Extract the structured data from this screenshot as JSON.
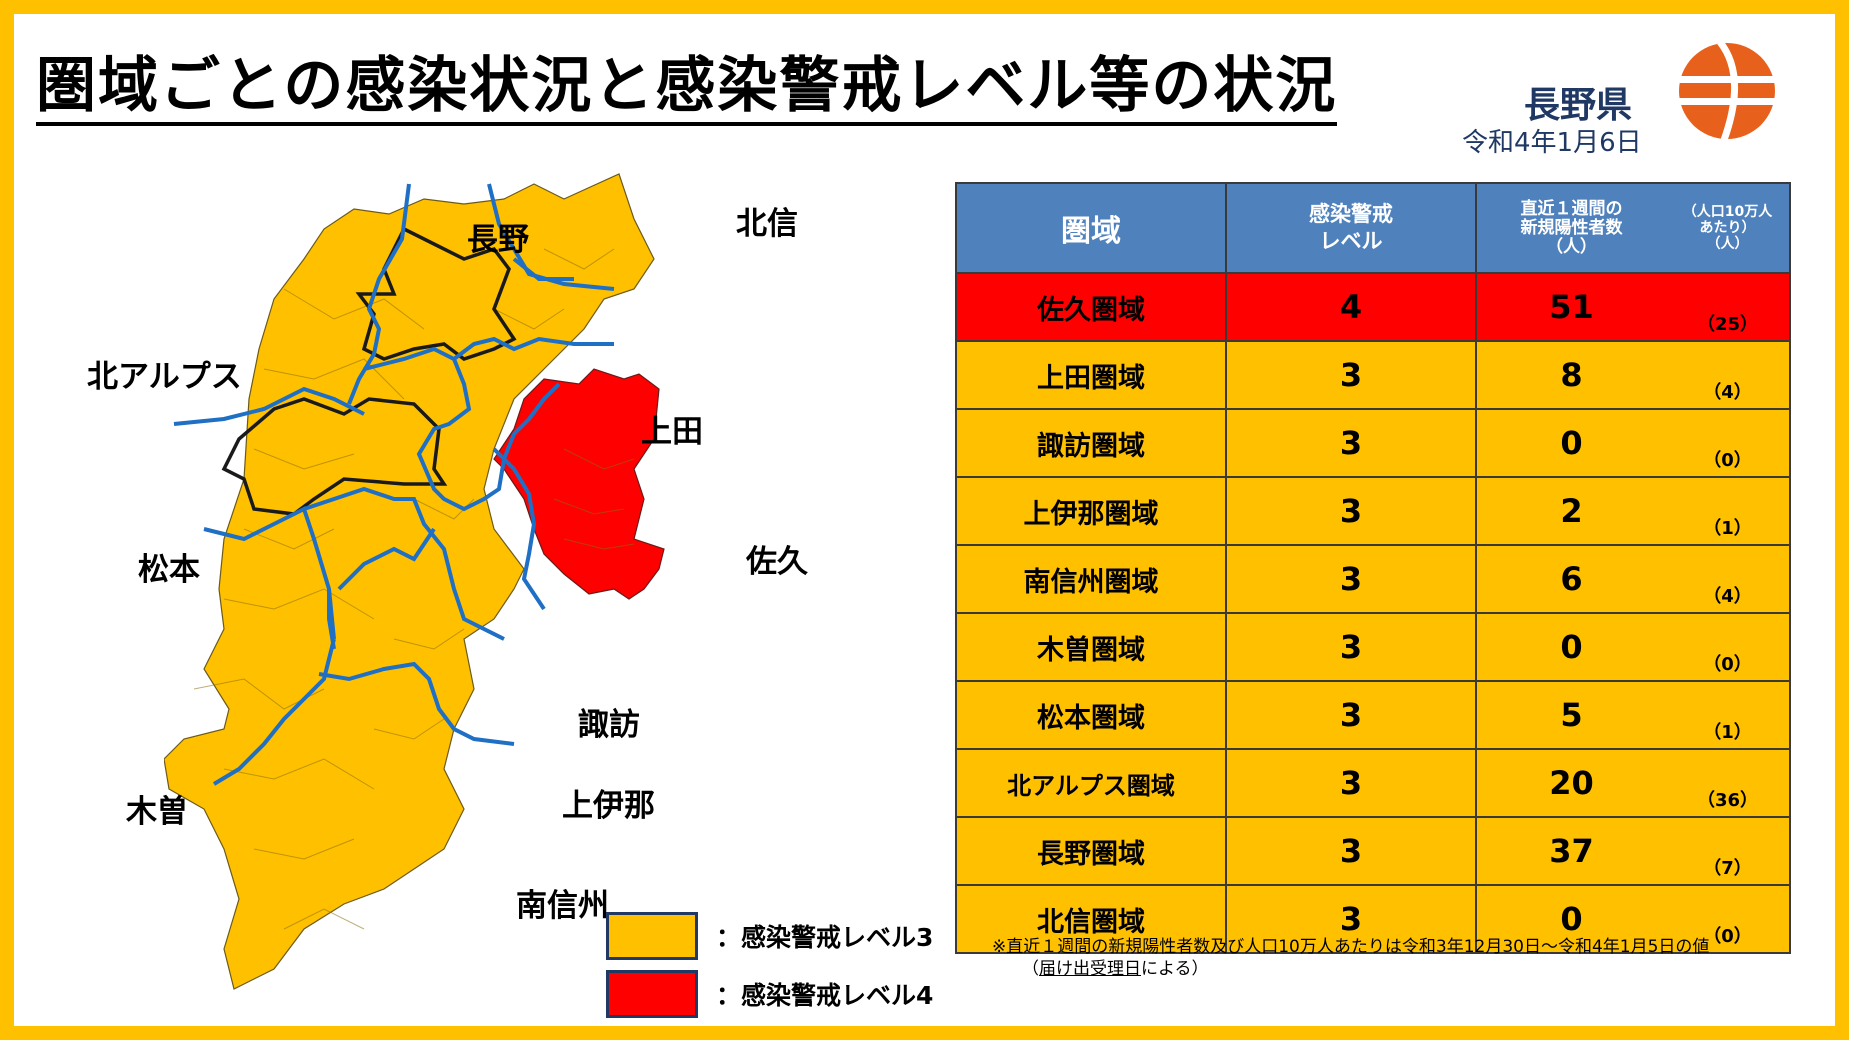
{
  "title": "圏域ごとの感染状況と感染警戒レベル等の状況",
  "prefecture": {
    "name": "長野県",
    "date": "令和4年1月6日"
  },
  "colors": {
    "level3": "#ffc000",
    "level4": "#ff0000",
    "header": "#4f81bd",
    "boundary": "#1f6fc4"
  },
  "map": {
    "labels": {
      "nagano": "長野",
      "hokushin": "北信",
      "kita_alps": "北アルプス",
      "ueda": "上田",
      "matsumoto": "松本",
      "saku": "佐久",
      "suwa": "諏訪",
      "kiso": "木曽",
      "kamiina": "上伊那",
      "minamishinshu": "南信州"
    }
  },
  "legend": [
    {
      "label": "：感染警戒レベル3",
      "color": "#ffc000"
    },
    {
      "label": "：感染警戒レベル4",
      "color": "#ff0000"
    }
  ],
  "table": {
    "headers": {
      "area": "圏域",
      "level_1": "感染警戒",
      "level_2": "レベル",
      "count_1": "直近１週間の",
      "count_2": "新規陽性者数",
      "count_3": "（人）",
      "per_1": "（人口10万人",
      "per_2": "あたり）",
      "per_3": "（人）"
    },
    "rows": [
      {
        "area": "佐久圏域",
        "level": "4",
        "count": "51",
        "per": "（25）"
      },
      {
        "area": "上田圏域",
        "level": "3",
        "count": "8",
        "per": "（4）"
      },
      {
        "area": "諏訪圏域",
        "level": "3",
        "count": "0",
        "per": "（0）"
      },
      {
        "area": "上伊那圏域",
        "level": "3",
        "count": "2",
        "per": "（1）"
      },
      {
        "area": "南信州圏域",
        "level": "3",
        "count": "6",
        "per": "（4）"
      },
      {
        "area": "木曽圏域",
        "level": "3",
        "count": "0",
        "per": "（0）"
      },
      {
        "area": "松本圏域",
        "level": "3",
        "count": "5",
        "per": "（1）"
      },
      {
        "area": "北アルプス圏域",
        "level": "3",
        "count": "20",
        "per": "（36）"
      },
      {
        "area": "長野圏域",
        "level": "3",
        "count": "37",
        "per": "（7）"
      },
      {
        "area": "北信圏域",
        "level": "3",
        "count": "0",
        "per": "（0）"
      }
    ]
  },
  "note": {
    "line1": "※直近１週間の新規陽性者数及び人口10万人あたりは令和3年12月30日～令和4年1月5日の値",
    "line2_prefix": "（",
    "line2_link": "届け出受理日",
    "line2_suffix": "による）"
  }
}
